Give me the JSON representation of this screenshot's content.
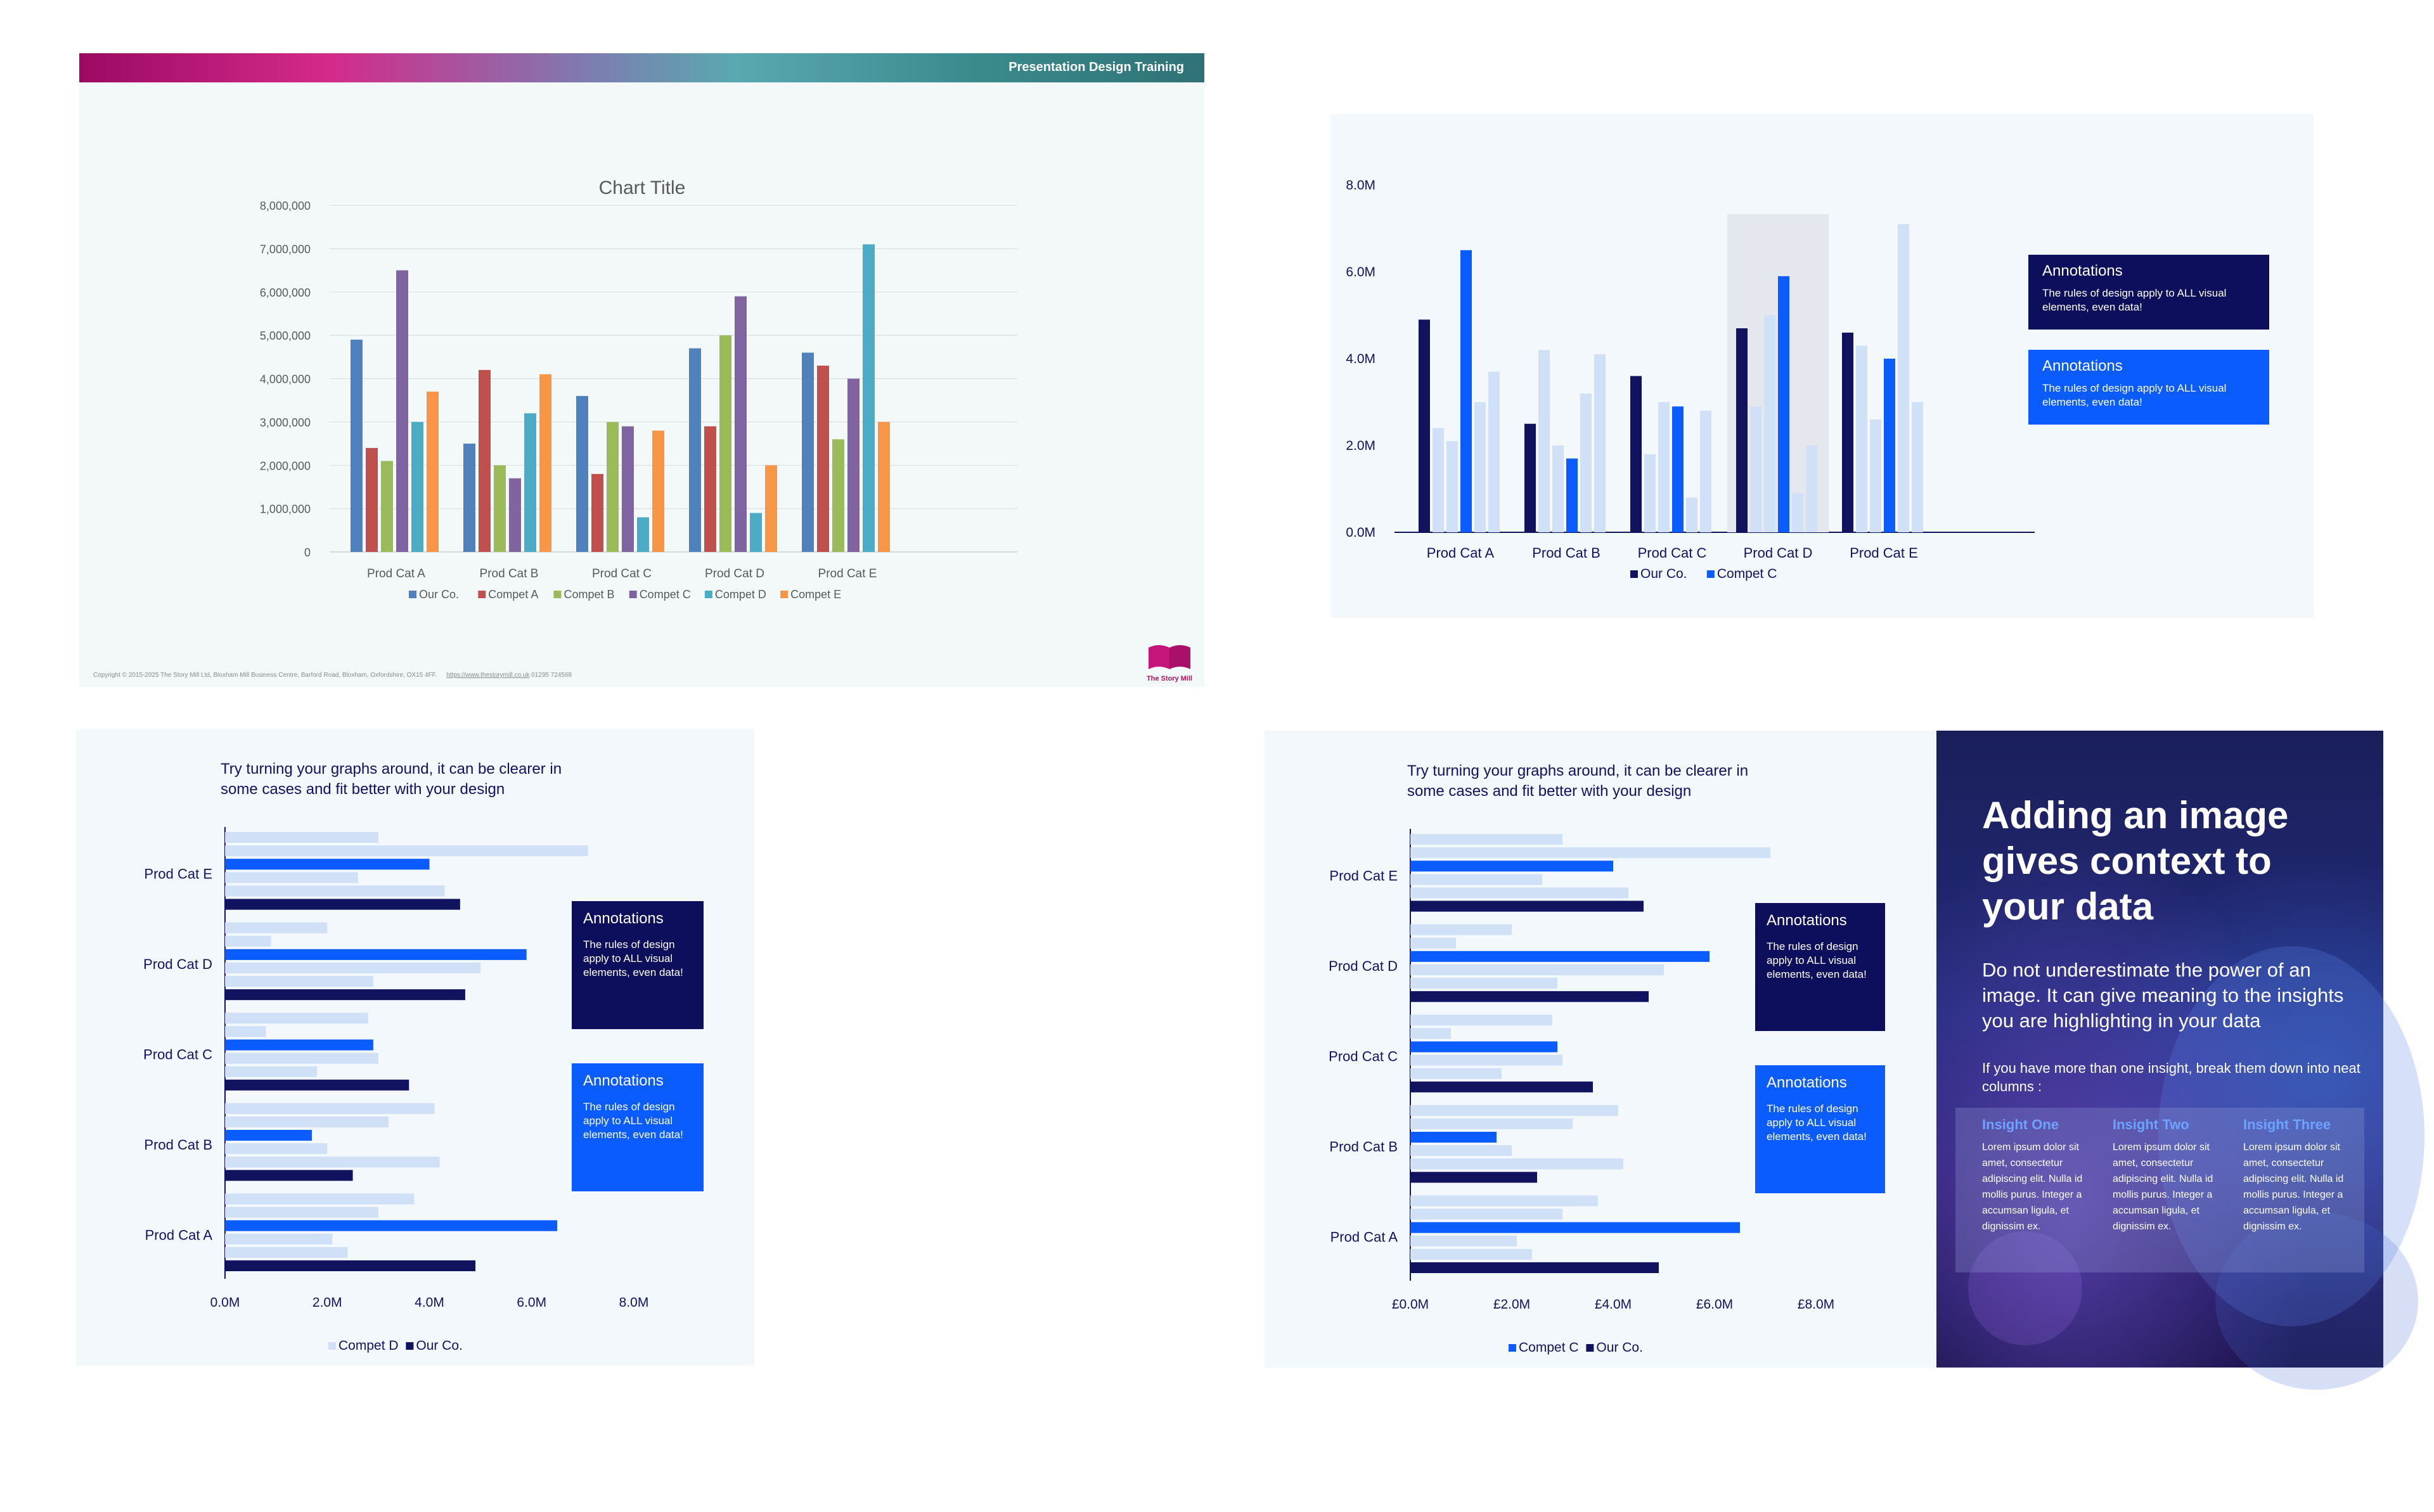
{
  "slide1": {
    "header": "Presentation Design Training",
    "copyright": "Copyright © 2015-2025 The Story Mill Ltd, Bloxham Mill Business Centre, Barford Road, Bloxham, Oxfordshire, OX15 4FF.",
    "link": "https://www.thestorymill.co.uk",
    "phone": "01295 724568",
    "logo_text": "The Story Mill"
  },
  "slide3": {
    "title": "Try turning your graphs around, it can be clearer in some cases and fit better with your design"
  },
  "slide4": {
    "title": "Try turning your graphs around, it can be clearer in some cases and fit better with your design"
  },
  "annotation": {
    "title": "Annotations",
    "body": "The rules of design apply to ALL visual elements, even data!"
  },
  "slide5": {
    "headline": "Adding an image gives context to your data",
    "subtext": "Do not underestimate the power of an image. It can give meaning to the insights you are highlighting in your data",
    "subtext2": "If you have more than one insight, break them down into neat columns :",
    "insights": [
      {
        "title": "Insight One",
        "body": "Lorem ipsum dolor sit amet, consectetur adipiscing elit. Nulla id mollis purus. Integer a accumsan ligula, et dignissim ex."
      },
      {
        "title": "Insight Two",
        "body": "Lorem ipsum dolor sit amet, consectetur adipiscing elit. Nulla id mollis purus. Integer a accumsan ligula, et dignissim ex."
      },
      {
        "title": "Insight Three",
        "body": "Lorem ipsum dolor sit amet, consectetur adipiscing elit. Nulla id mollis purus. Integer a accumsan ligula, et dignissim ex."
      }
    ]
  },
  "chart_data": [
    {
      "type": "bar",
      "title": "Chart Title",
      "categories": [
        "Prod Cat A",
        "Prod Cat B",
        "Prod Cat C",
        "Prod Cat D",
        "Prod Cat E"
      ],
      "series": [
        {
          "name": "Our Co.",
          "values": [
            4900000,
            2500000,
            3600000,
            4700000,
            4600000
          ],
          "color": "#4f81bd"
        },
        {
          "name": "Compet A",
          "values": [
            2400000,
            4200000,
            1800000,
            2900000,
            4300000
          ],
          "color": "#c0504d"
        },
        {
          "name": "Compet B",
          "values": [
            2100000,
            2000000,
            3000000,
            5000000,
            2600000
          ],
          "color": "#9bbb59"
        },
        {
          "name": "Compet C",
          "values": [
            6500000,
            1700000,
            2900000,
            5900000,
            4000000
          ],
          "color": "#8064a2"
        },
        {
          "name": "Compet D",
          "values": [
            3000000,
            3200000,
            800000,
            900000,
            7100000
          ],
          "color": "#4bacc6"
        },
        {
          "name": "Compet E",
          "values": [
            3700000,
            4100000,
            2800000,
            2000000,
            3000000
          ],
          "color": "#f79646"
        }
      ],
      "ylim": [
        0,
        8000000
      ],
      "yticks": [
        "0",
        "1,000,000",
        "2,000,000",
        "3,000,000",
        "4,000,000",
        "5,000,000",
        "6,000,000",
        "7,000,000",
        "8,000,000"
      ],
      "legend": "bottom"
    },
    {
      "type": "bar",
      "categories": [
        "Prod Cat A",
        "Prod Cat B",
        "Prod Cat C",
        "Prod Cat D",
        "Prod Cat E"
      ],
      "series": [
        {
          "name": "Our Co.",
          "values": [
            4900000,
            2500000,
            3600000,
            4700000,
            4600000
          ],
          "color": "#11135e"
        },
        {
          "name": "Compet A",
          "values": [
            2400000,
            4200000,
            1800000,
            2900000,
            4300000
          ],
          "color": "#cfe0f7"
        },
        {
          "name": "Compet B",
          "values": [
            2100000,
            2000000,
            3000000,
            5000000,
            2600000
          ],
          "color": "#cfe0f7"
        },
        {
          "name": "Compet C",
          "values": [
            6500000,
            1700000,
            2900000,
            5900000,
            4000000
          ],
          "color": "#0a5cff"
        },
        {
          "name": "Compet D",
          "values": [
            3000000,
            3200000,
            800000,
            900000,
            7100000
          ],
          "color": "#cfe0f7"
        },
        {
          "name": "Compet E",
          "values": [
            3700000,
            4100000,
            2800000,
            2000000,
            3000000
          ],
          "color": "#cfe0f7"
        }
      ],
      "ylim": [
        0,
        8000000
      ],
      "yticks": [
        "0.0M",
        "2.0M",
        "4.0M",
        "6.0M",
        "8.0M"
      ],
      "highlight": "Prod Cat D",
      "legend": [
        {
          "name": "Our Co.",
          "color": "#11135e"
        },
        {
          "name": "Compet C",
          "color": "#0a5cff"
        }
      ]
    },
    {
      "type": "bar",
      "orientation": "horizontal",
      "categories": [
        "Prod Cat A",
        "Prod Cat B",
        "Prod Cat C",
        "Prod Cat D",
        "Prod Cat E"
      ],
      "series": [
        {
          "name": "Compet E",
          "values": [
            3700000,
            4100000,
            2800000,
            2000000,
            3000000
          ],
          "color": "#cfe0f7"
        },
        {
          "name": "Compet D",
          "values": [
            3000000,
            3200000,
            800000,
            900000,
            7100000
          ],
          "color": "#cfe0f7"
        },
        {
          "name": "Compet C",
          "values": [
            6500000,
            1700000,
            2900000,
            5900000,
            4000000
          ],
          "color": "#0a5cff"
        },
        {
          "name": "Compet B",
          "values": [
            2100000,
            2000000,
            3000000,
            5000000,
            2600000
          ],
          "color": "#cfe0f7"
        },
        {
          "name": "Compet A",
          "values": [
            2400000,
            4200000,
            1800000,
            2900000,
            4300000
          ],
          "color": "#cfe0f7"
        },
        {
          "name": "Our Co.",
          "values": [
            4900000,
            2500000,
            3600000,
            4700000,
            4600000
          ],
          "color": "#11135e"
        }
      ],
      "xlim": [
        0,
        8000000
      ],
      "xticks": [
        "0.0M",
        "2.0M",
        "4.0M",
        "6.0M",
        "8.0M"
      ],
      "legend": [
        {
          "name": "Compet D",
          "color": "#cfe0f7"
        },
        {
          "name": "Our Co.",
          "color": "#11135e"
        }
      ]
    },
    {
      "type": "bar",
      "orientation": "horizontal",
      "categories": [
        "Prod Cat A",
        "Prod Cat B",
        "Prod Cat C",
        "Prod Cat D",
        "Prod Cat E"
      ],
      "series": [
        {
          "name": "Compet E",
          "values": [
            3700000,
            4100000,
            2800000,
            2000000,
            3000000
          ],
          "color": "#cfe0f7"
        },
        {
          "name": "Compet D",
          "values": [
            3000000,
            3200000,
            800000,
            900000,
            7100000
          ],
          "color": "#cfe0f7"
        },
        {
          "name": "Compet C",
          "values": [
            6500000,
            1700000,
            2900000,
            5900000,
            4000000
          ],
          "color": "#0a5cff"
        },
        {
          "name": "Compet B",
          "values": [
            2100000,
            2000000,
            3000000,
            5000000,
            2600000
          ],
          "color": "#cfe0f7"
        },
        {
          "name": "Compet A",
          "values": [
            2400000,
            4200000,
            1800000,
            2900000,
            4300000
          ],
          "color": "#cfe0f7"
        },
        {
          "name": "Our Co.",
          "values": [
            4900000,
            2500000,
            3600000,
            4700000,
            4600000
          ],
          "color": "#11135e"
        }
      ],
      "xlim": [
        0,
        8000000
      ],
      "xticks": [
        "£0.0M",
        "£2.0M",
        "£4.0M",
        "£6.0M",
        "£8.0M"
      ],
      "legend": [
        {
          "name": "Compet C",
          "color": "#0a5cff"
        },
        {
          "name": "Our Co.",
          "color": "#11135e"
        }
      ]
    }
  ]
}
